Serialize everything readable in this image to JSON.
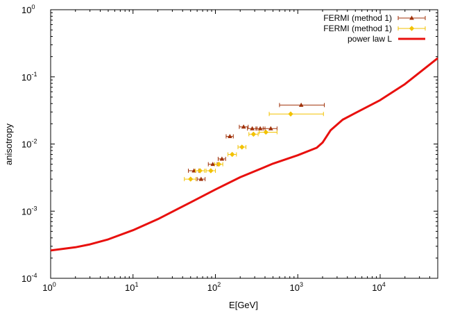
{
  "chart_data": {
    "type": "scatter",
    "title": "",
    "xlabel": "E[GeV]",
    "ylabel": "anisotropy",
    "xscale": "log",
    "yscale": "log",
    "xlim": [
      1,
      50000
    ],
    "ylim": [
      0.0001,
      1
    ],
    "x_ticks": [
      {
        "base": "10",
        "exp": "0",
        "value": 1
      },
      {
        "base": "10",
        "exp": "1",
        "value": 10
      },
      {
        "base": "10",
        "exp": "2",
        "value": 100
      },
      {
        "base": "10",
        "exp": "3",
        "value": 1000
      },
      {
        "base": "10",
        "exp": "4",
        "value": 10000
      }
    ],
    "y_ticks": [
      {
        "base": "10",
        "exp": "-4",
        "value": 0.0001
      },
      {
        "base": "10",
        "exp": "-3",
        "value": 0.001
      },
      {
        "base": "10",
        "exp": "-2",
        "value": 0.01
      },
      {
        "base": "10",
        "exp": "-1",
        "value": 0.1
      },
      {
        "base": "10",
        "exp": "0",
        "value": 1
      }
    ],
    "grid": false,
    "legend_position": "top-right",
    "series": [
      {
        "name": "FERMI (method 1)",
        "kind": "points-xerr",
        "color": "#a0320a",
        "marker": "triangle",
        "points": [
          {
            "x": 55,
            "y": 0.004,
            "xlo": 47,
            "xhi": 63
          },
          {
            "x": 67,
            "y": 0.003,
            "xlo": 60,
            "xhi": 75
          },
          {
            "x": 93,
            "y": 0.005,
            "xlo": 82,
            "xhi": 105
          },
          {
            "x": 120,
            "y": 0.006,
            "xlo": 108,
            "xhi": 133
          },
          {
            "x": 150,
            "y": 0.013,
            "xlo": 135,
            "xhi": 165
          },
          {
            "x": 220,
            "y": 0.018,
            "xlo": 195,
            "xhi": 250
          },
          {
            "x": 280,
            "y": 0.017,
            "xlo": 245,
            "xhi": 320
          },
          {
            "x": 350,
            "y": 0.017,
            "xlo": 310,
            "xhi": 400
          },
          {
            "x": 470,
            "y": 0.017,
            "xlo": 380,
            "xhi": 560
          },
          {
            "x": 1100,
            "y": 0.038,
            "xlo": 600,
            "xhi": 2100
          }
        ]
      },
      {
        "name": "FERMI (method 1)",
        "kind": "points-xerr",
        "color": "#f2c200",
        "marker": "diamond",
        "points": [
          {
            "x": 50,
            "y": 0.003,
            "xlo": 42,
            "xhi": 58
          },
          {
            "x": 65,
            "y": 0.004,
            "xlo": 57,
            "xhi": 74
          },
          {
            "x": 88,
            "y": 0.004,
            "xlo": 77,
            "xhi": 100
          },
          {
            "x": 110,
            "y": 0.005,
            "xlo": 98,
            "xhi": 123
          },
          {
            "x": 160,
            "y": 0.007,
            "xlo": 142,
            "xhi": 180
          },
          {
            "x": 210,
            "y": 0.009,
            "xlo": 188,
            "xhi": 235
          },
          {
            "x": 290,
            "y": 0.014,
            "xlo": 255,
            "xhi": 330
          },
          {
            "x": 410,
            "y": 0.015,
            "xlo": 340,
            "xhi": 560
          },
          {
            "x": 820,
            "y": 0.028,
            "xlo": 450,
            "xhi": 2050
          }
        ]
      },
      {
        "name": "power law L",
        "kind": "line",
        "color": "#e8100e",
        "points": [
          {
            "x": 1,
            "y": 0.00026
          },
          {
            "x": 2,
            "y": 0.00029
          },
          {
            "x": 3,
            "y": 0.00032
          },
          {
            "x": 5,
            "y": 0.00038
          },
          {
            "x": 10,
            "y": 0.00052
          },
          {
            "x": 20,
            "y": 0.00076
          },
          {
            "x": 50,
            "y": 0.00135
          },
          {
            "x": 100,
            "y": 0.0021
          },
          {
            "x": 200,
            "y": 0.0032
          },
          {
            "x": 500,
            "y": 0.0051
          },
          {
            "x": 1000,
            "y": 0.0068
          },
          {
            "x": 1700,
            "y": 0.0088
          },
          {
            "x": 2000,
            "y": 0.0105
          },
          {
            "x": 2500,
            "y": 0.016
          },
          {
            "x": 3500,
            "y": 0.023
          },
          {
            "x": 5000,
            "y": 0.029
          },
          {
            "x": 10000,
            "y": 0.045
          },
          {
            "x": 20000,
            "y": 0.078
          },
          {
            "x": 50000,
            "y": 0.19
          }
        ]
      }
    ]
  }
}
